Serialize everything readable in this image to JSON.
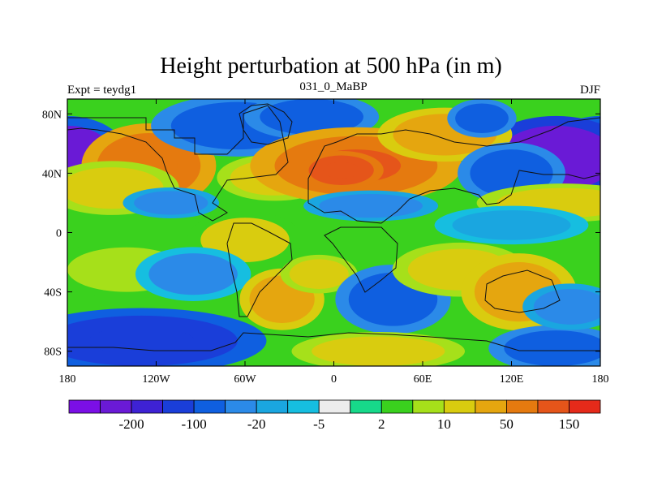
{
  "chart_data": {
    "type": "heatmap",
    "title": "Height perturbation at 500 hPa (in m)",
    "subtitle_left": "Expt = teydg1",
    "subtitle_center": "031_0_MaBP",
    "subtitle_right": "DJF",
    "x_ticks": [
      {
        "value": -180,
        "label": "180"
      },
      {
        "value": -120,
        "label": "120W"
      },
      {
        "value": -60,
        "label": "60W"
      },
      {
        "value": 0,
        "label": "0"
      },
      {
        "value": 60,
        "label": "60E"
      },
      {
        "value": 120,
        "label": "120E"
      },
      {
        "value": 180,
        "label": "180"
      }
    ],
    "y_ticks": [
      {
        "value": 80,
        "label": "80N"
      },
      {
        "value": 40,
        "label": "40N"
      },
      {
        "value": 0,
        "label": "0"
      },
      {
        "value": -40,
        "label": "40S"
      },
      {
        "value": -80,
        "label": "80S"
      }
    ],
    "xlim": [
      -180,
      180
    ],
    "ylim": [
      -90,
      90
    ],
    "colorbar": {
      "colors": [
        "#7b0fe6",
        "#6a1ad6",
        "#3e22d4",
        "#1a3ed9",
        "#0f5fe0",
        "#2b8ae8",
        "#1aa6e0",
        "#16bee0",
        "#ececec",
        "#17d98a",
        "#3ad11e",
        "#a6e01a",
        "#d9cc0f",
        "#e5a60f",
        "#e57a0f",
        "#e5551a",
        "#e52a1a"
      ],
      "tick_labels": [
        {
          "index": 1,
          "label": "-200"
        },
        {
          "index": 3,
          "label": "-100"
        },
        {
          "index": 5,
          "label": "-20"
        },
        {
          "index": 7,
          "label": "-5"
        },
        {
          "index": 9,
          "label": "2"
        },
        {
          "index": 11,
          "label": "10"
        },
        {
          "index": 13,
          "label": "50"
        },
        {
          "index": 15,
          "label": "150"
        }
      ]
    },
    "blobs": [
      {
        "lon": -180,
        "lat": 50,
        "rlon": 32,
        "rlat": 22,
        "level": -220
      },
      {
        "lon": 180,
        "lat": 50,
        "rlon": 30,
        "rlat": 22,
        "level": -220
      },
      {
        "lon": 150,
        "lat": 50,
        "rlon": 40,
        "rlat": 22,
        "level": -230
      },
      {
        "lon": -125,
        "lat": 45,
        "rlon": 35,
        "rlat": 22,
        "level": 110
      },
      {
        "lon": -150,
        "lat": 30,
        "rlon": 35,
        "rlat": 14,
        "level": 30
      },
      {
        "lon": -65,
        "lat": 72,
        "rlon": 45,
        "rlat": 16,
        "level": -60
      },
      {
        "lon": -15,
        "lat": 78,
        "rlon": 35,
        "rlat": 12,
        "level": -90
      },
      {
        "lon": -40,
        "lat": 37,
        "rlon": 30,
        "rlat": 12,
        "level": 25
      },
      {
        "lon": 15,
        "lat": 45,
        "rlon": 55,
        "rlat": 20,
        "level": 130
      },
      {
        "lon": 5,
        "lat": 42,
        "rlon": 22,
        "rlat": 10,
        "level": 190
      },
      {
        "lon": 75,
        "lat": 66,
        "rlon": 35,
        "rlat": 14,
        "level": 70
      },
      {
        "lon": 100,
        "lat": 77,
        "rlon": 18,
        "rlat": 10,
        "level": -50
      },
      {
        "lon": 120,
        "lat": 40,
        "rlon": 28,
        "rlat": 16,
        "level": -60
      },
      {
        "lon": 155,
        "lat": 20,
        "rlon": 45,
        "rlat": 10,
        "level": 30
      },
      {
        "lon": -110,
        "lat": 20,
        "rlon": 25,
        "rlat": 8,
        "level": -40
      },
      {
        "lon": 25,
        "lat": 18,
        "rlon": 35,
        "rlat": 8,
        "level": -30
      },
      {
        "lon": 120,
        "lat": 5,
        "rlon": 40,
        "rlat": 10,
        "level": -15
      },
      {
        "lon": -60,
        "lat": -5,
        "rlon": 30,
        "rlat": 15,
        "level": 20
      },
      {
        "lon": -140,
        "lat": -25,
        "rlon": 40,
        "rlat": 15,
        "level": 10
      },
      {
        "lon": -95,
        "lat": -28,
        "rlon": 30,
        "rlat": 14,
        "level": -20
      },
      {
        "lon": -35,
        "lat": -45,
        "rlon": 22,
        "rlat": 16,
        "level": 60
      },
      {
        "lon": -10,
        "lat": -28,
        "rlon": 20,
        "rlat": 10,
        "level": 25
      },
      {
        "lon": 40,
        "lat": -45,
        "rlon": 30,
        "rlat": 18,
        "level": -80
      },
      {
        "lon": 85,
        "lat": -25,
        "rlon": 35,
        "rlat": 14,
        "level": 25
      },
      {
        "lon": 125,
        "lat": -40,
        "rlon": 30,
        "rlat": 20,
        "level": 70
      },
      {
        "lon": -130,
        "lat": -73,
        "rlon": 65,
        "rlat": 17,
        "level": -130
      },
      {
        "lon": 30,
        "lat": -80,
        "rlon": 45,
        "rlat": 10,
        "level": 25
      },
      {
        "lon": 150,
        "lat": -78,
        "rlon": 35,
        "rlat": 12,
        "level": -60
      },
      {
        "lon": 160,
        "lat": -50,
        "rlon": 25,
        "rlat": 12,
        "level": -30
      }
    ]
  }
}
